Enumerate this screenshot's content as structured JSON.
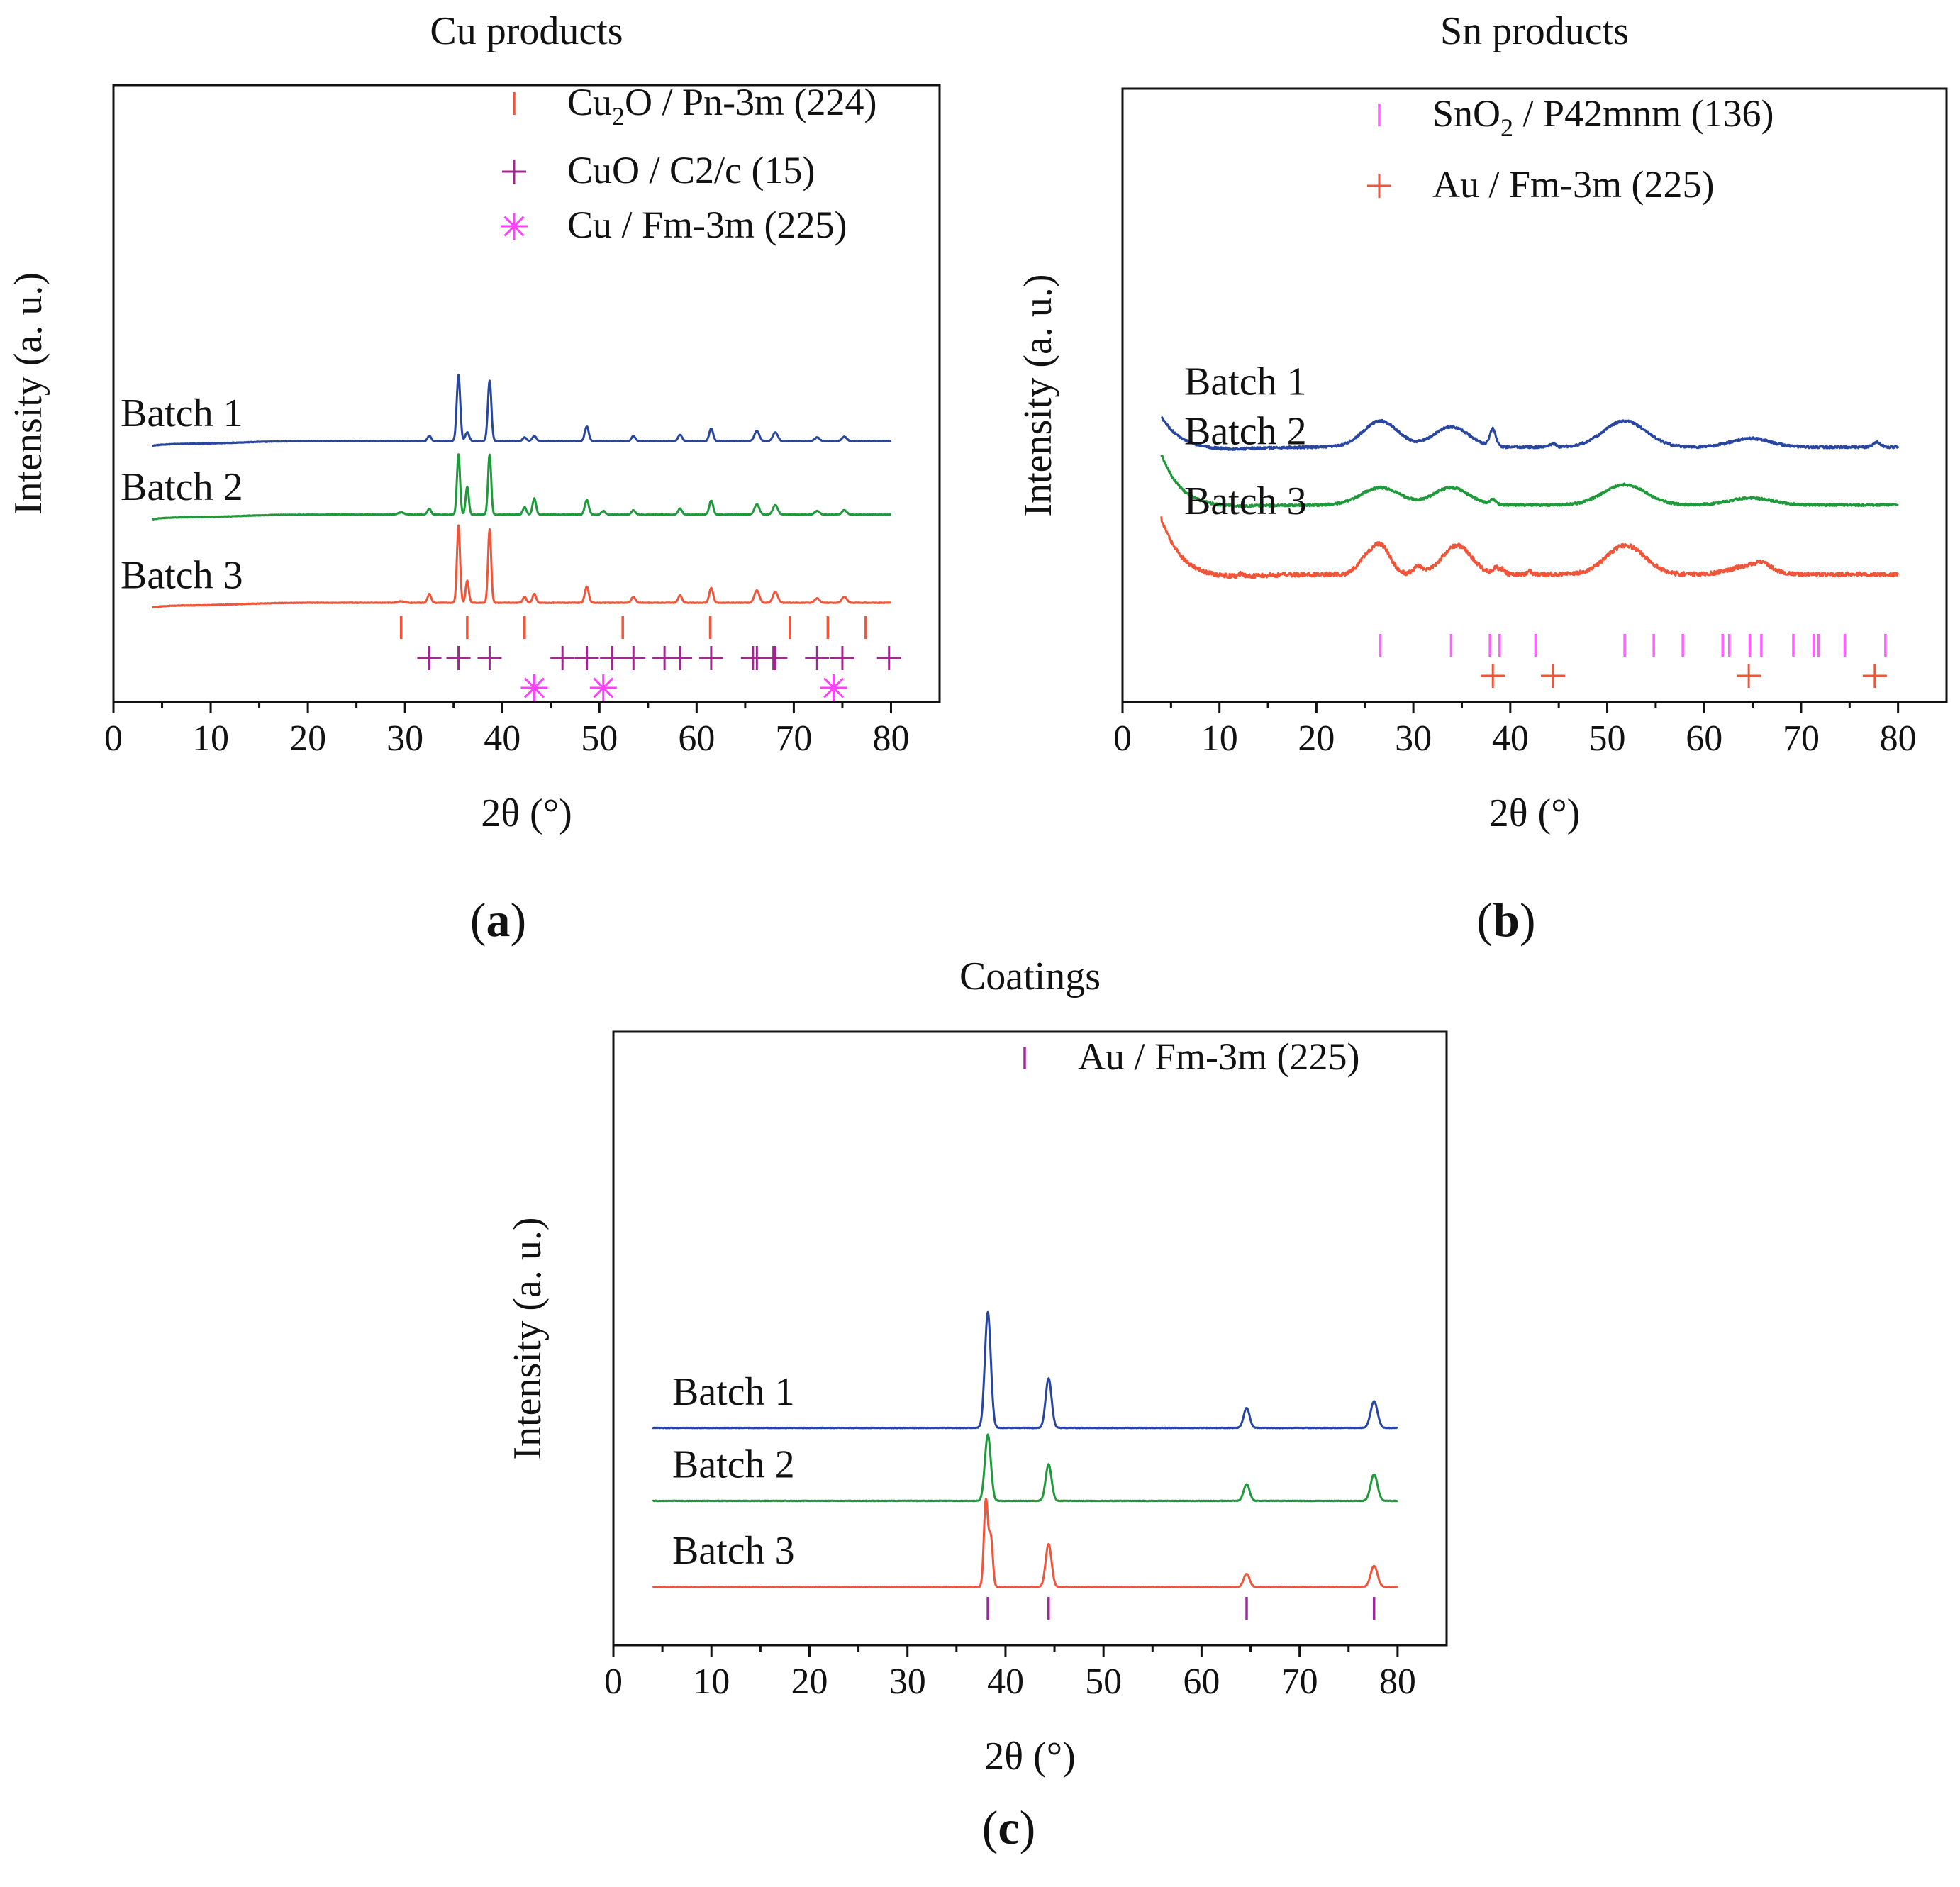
{
  "figure": {
    "panel_labels": [
      "a",
      "b",
      "c"
    ]
  },
  "colors": {
    "batch1": "#2846a0",
    "batch2": "#1e9a3a",
    "batch3": "#f0553a",
    "cu2o_marker": "#f0553a",
    "cuo_marker": "#a0288c",
    "cu_marker": "#ff40ff",
    "sno2_marker": "#ff60ff",
    "au_marker_b": "#f0553a",
    "au_marker_c": "#9a2a9a",
    "axis": "#111111"
  },
  "chart_data": [
    {
      "type": "line",
      "panel": "a",
      "title": "Cu products",
      "xlabel": "2θ (°)",
      "ylabel": "Intensity (a. u.)",
      "xlim": [
        0,
        85
      ],
      "x_ticks": [
        0,
        10,
        20,
        30,
        40,
        50,
        60,
        70,
        80
      ],
      "x_range": [
        4,
        80
      ],
      "series": [
        {
          "name": "Batch 1",
          "color_key": "batch1",
          "offset": 2.2,
          "bg_start": -0.05,
          "bg_dip": 0.03,
          "noise": 0.004,
          "peaks": [
            [
              32.5,
              0.07,
              0.18
            ],
            [
              35.5,
              0.9,
              0.18
            ],
            [
              36.4,
              0.12,
              0.2
            ],
            [
              38.7,
              0.82,
              0.18
            ],
            [
              42.3,
              0.05,
              0.2
            ],
            [
              43.3,
              0.07,
              0.2
            ],
            [
              48.7,
              0.2,
              0.2
            ],
            [
              53.5,
              0.07,
              0.2
            ],
            [
              58.3,
              0.09,
              0.2
            ],
            [
              61.5,
              0.17,
              0.2
            ],
            [
              66.2,
              0.14,
              0.25
            ],
            [
              68.1,
              0.12,
              0.25
            ],
            [
              72.4,
              0.05,
              0.25
            ],
            [
              75.2,
              0.06,
              0.25
            ]
          ]
        },
        {
          "name": "Batch 2",
          "color_key": "batch2",
          "offset": 1.2,
          "bg_start": -0.05,
          "bg_dip": 0.03,
          "noise": 0.004,
          "peaks": [
            [
              29.6,
              0.03,
              0.3
            ],
            [
              32.5,
              0.08,
              0.18
            ],
            [
              35.5,
              0.82,
              0.16
            ],
            [
              36.4,
              0.38,
              0.16
            ],
            [
              38.7,
              0.82,
              0.16
            ],
            [
              42.3,
              0.1,
              0.18
            ],
            [
              43.3,
              0.22,
              0.18
            ],
            [
              48.7,
              0.2,
              0.2
            ],
            [
              50.4,
              0.05,
              0.2
            ],
            [
              53.5,
              0.06,
              0.2
            ],
            [
              58.3,
              0.08,
              0.2
            ],
            [
              61.5,
              0.19,
              0.2
            ],
            [
              66.2,
              0.14,
              0.25
            ],
            [
              68.1,
              0.13,
              0.25
            ],
            [
              72.4,
              0.05,
              0.25
            ],
            [
              75.2,
              0.06,
              0.25
            ]
          ]
        },
        {
          "name": "Batch 3",
          "color_key": "batch3",
          "offset": 0.0,
          "bg_start": -0.05,
          "bg_dip": 0.03,
          "noise": 0.004,
          "peaks": [
            [
              29.6,
              0.02,
              0.3
            ],
            [
              32.5,
              0.12,
              0.18
            ],
            [
              35.5,
              1.05,
              0.16
            ],
            [
              36.4,
              0.3,
              0.16
            ],
            [
              38.7,
              1.0,
              0.16
            ],
            [
              42.3,
              0.08,
              0.18
            ],
            [
              43.3,
              0.12,
              0.18
            ],
            [
              48.7,
              0.22,
              0.2
            ],
            [
              53.5,
              0.08,
              0.2
            ],
            [
              58.3,
              0.1,
              0.2
            ],
            [
              61.5,
              0.2,
              0.2
            ],
            [
              66.2,
              0.17,
              0.25
            ],
            [
              68.1,
              0.15,
              0.25
            ],
            [
              72.4,
              0.06,
              0.25
            ],
            [
              75.2,
              0.08,
              0.25
            ]
          ]
        }
      ],
      "references": [
        {
          "name": "Cu2O / Pn-3m (224)",
          "label_main": "Cu",
          "label_sub": "2",
          "label_rest": "O / Pn-3m (224)",
          "marker": "bar",
          "color_key": "cu2o_marker",
          "row": 0,
          "positions": [
            29.6,
            36.4,
            42.3,
            52.4,
            61.4,
            69.6,
            73.5,
            77.4
          ]
        },
        {
          "name": "CuO / C2/c (15)",
          "label_main": "CuO / C2/c (15)",
          "label_sub": "",
          "label_rest": "",
          "marker": "plus",
          "color_key": "cuo_marker",
          "row": 1,
          "positions": [
            32.5,
            35.5,
            38.7,
            46.2,
            48.7,
            51.3,
            53.5,
            56.7,
            58.3,
            61.5,
            65.8,
            66.2,
            67.9,
            68.1,
            72.4,
            75.0,
            79.8
          ]
        },
        {
          "name": "Cu / Fm-3m (225)",
          "label_main": "Cu / Fm-3m (225)",
          "label_sub": "",
          "label_rest": "",
          "marker": "asterisk",
          "color_key": "cu_marker",
          "row": 2,
          "positions": [
            43.3,
            50.4,
            74.1
          ]
        }
      ]
    },
    {
      "type": "line",
      "panel": "b",
      "title": "Sn products",
      "xlabel": "2θ (°)",
      "ylabel": "Intensity (a. u.)",
      "xlim": [
        0,
        85
      ],
      "x_ticks": [
        0,
        10,
        20,
        30,
        40,
        50,
        60,
        70,
        80
      ],
      "x_range": [
        4,
        80
      ],
      "series": [
        {
          "name": "Batch 1",
          "color_key": "batch1",
          "offset": 2.2,
          "bg_start": 0.55,
          "bg_dip": 0.05,
          "noise": 0.02,
          "peaks": [
            [
              26.6,
              0.45,
              1.8
            ],
            [
              33.9,
              0.35,
              1.8
            ],
            [
              38.2,
              0.3,
              0.3
            ],
            [
              44.4,
              0.06,
              0.3
            ],
            [
              51.8,
              0.45,
              2.2
            ],
            [
              64.8,
              0.15,
              2.0
            ],
            [
              77.8,
              0.08,
              0.4
            ]
          ]
        },
        {
          "name": "Batch 2",
          "color_key": "batch2",
          "offset": 1.2,
          "bg_start": 0.9,
          "bg_dip": 0.04,
          "noise": 0.02,
          "peaks": [
            [
              26.6,
              0.3,
              2.0
            ],
            [
              33.9,
              0.3,
              1.8
            ],
            [
              38.2,
              0.08,
              0.3
            ],
            [
              51.8,
              0.35,
              2.2
            ],
            [
              64.8,
              0.12,
              2.2
            ]
          ]
        },
        {
          "name": "Batch 3",
          "color_key": "batch3",
          "offset": 0.0,
          "bg_start": 1.0,
          "bg_dip": 0.06,
          "noise": 0.035,
          "peaks": [
            [
              24.9,
              0.2,
              0.8
            ],
            [
              26.6,
              0.5,
              1.0
            ],
            [
              30.5,
              0.12,
              0.5
            ],
            [
              34.5,
              0.5,
              1.5
            ],
            [
              38.5,
              0.1,
              0.3
            ],
            [
              39.2,
              0.08,
              0.3
            ],
            [
              42.0,
              0.05,
              0.3
            ],
            [
              51.9,
              0.5,
              2.0
            ],
            [
              64.8,
              0.15,
              2.0
            ],
            [
              66.0,
              0.08,
              0.8
            ],
            [
              12.3,
              0.05,
              0.2
            ]
          ]
        }
      ],
      "references": [
        {
          "name": "SnO2 / P42mnm (136)",
          "label_main": "SnO",
          "label_sub": "2",
          "label_rest": " / P42mnm (136)",
          "marker": "bar",
          "color_key": "sno2_marker",
          "row": 0,
          "positions": [
            26.6,
            33.9,
            37.9,
            38.9,
            42.6,
            51.8,
            54.8,
            57.8,
            61.9,
            62.6,
            64.7,
            65.9,
            69.2,
            71.3,
            71.8,
            74.5,
            78.7
          ]
        },
        {
          "name": "Au / Fm-3m (225)",
          "label_main": "Au / Fm-3m (225)",
          "label_sub": "",
          "label_rest": "",
          "marker": "plus",
          "color_key": "au_marker_b",
          "row": 1,
          "positions": [
            38.2,
            44.4,
            64.6,
            77.6
          ]
        }
      ]
    },
    {
      "type": "line",
      "panel": "c",
      "title": "Coatings",
      "xlabel": "2θ (°)",
      "ylabel": "Intensity (a. u.)",
      "xlim": [
        0,
        85
      ],
      "x_ticks": [
        0,
        10,
        20,
        30,
        40,
        50,
        60,
        70,
        80
      ],
      "x_range": [
        4,
        80
      ],
      "series": [
        {
          "name": "Batch 1",
          "color_key": "batch1",
          "offset": 2.4,
          "bg_start": 0.0,
          "bg_dip": 0.0,
          "noise": 0.004,
          "peaks": [
            [
              38.2,
              1.75,
              0.3
            ],
            [
              44.4,
              0.75,
              0.3
            ],
            [
              64.6,
              0.3,
              0.3
            ],
            [
              77.6,
              0.4,
              0.35
            ]
          ]
        },
        {
          "name": "Batch 2",
          "color_key": "batch2",
          "offset": 1.3,
          "bg_start": 0.0,
          "bg_dip": 0.0,
          "noise": 0.004,
          "peaks": [
            [
              38.2,
              1.0,
              0.3
            ],
            [
              44.4,
              0.55,
              0.3
            ],
            [
              64.6,
              0.25,
              0.3
            ],
            [
              77.6,
              0.4,
              0.35
            ]
          ]
        },
        {
          "name": "Batch 3",
          "color_key": "batch3",
          "offset": 0.0,
          "bg_start": 0.0,
          "bg_dip": 0.0,
          "noise": 0.004,
          "peaks": [
            [
              38.0,
              1.3,
              0.2
            ],
            [
              38.5,
              0.75,
              0.2
            ],
            [
              44.4,
              0.65,
              0.3
            ],
            [
              64.6,
              0.2,
              0.3
            ],
            [
              77.6,
              0.32,
              0.35
            ]
          ]
        }
      ],
      "references": [
        {
          "name": "Au / Fm-3m (225)",
          "label_main": "Au / Fm-3m (225)",
          "label_sub": "",
          "label_rest": "",
          "marker": "bar",
          "color_key": "au_marker_c",
          "row": 0,
          "positions": [
            38.2,
            44.4,
            64.6,
            77.6
          ]
        }
      ]
    }
  ]
}
